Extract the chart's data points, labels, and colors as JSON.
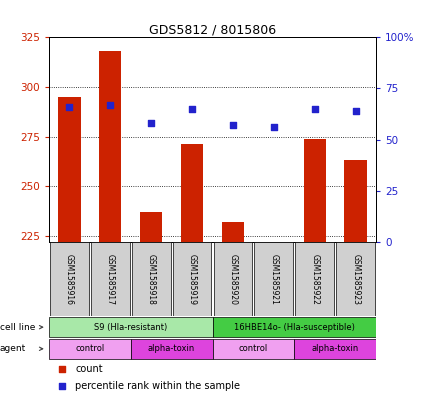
{
  "title": "GDS5812 / 8015806",
  "samples": [
    "GSM1585916",
    "GSM1585917",
    "GSM1585918",
    "GSM1585919",
    "GSM1585920",
    "GSM1585921",
    "GSM1585922",
    "GSM1585923"
  ],
  "counts": [
    295,
    318,
    237,
    271,
    232,
    222,
    274,
    263
  ],
  "percentile_ranks": [
    66,
    67,
    58,
    65,
    57,
    56,
    65,
    64
  ],
  "ylim_left": [
    222,
    325
  ],
  "ylim_right": [
    0,
    100
  ],
  "yticks_left": [
    225,
    250,
    275,
    300,
    325
  ],
  "yticks_right": [
    0,
    25,
    50,
    75,
    100
  ],
  "bar_color": "#cc2200",
  "dot_color": "#2222cc",
  "bar_bottom": 222,
  "cell_line_labels": [
    [
      "S9 (Hla-resistant)",
      0,
      4
    ],
    [
      "16HBE14o- (Hla-susceptible)",
      4,
      8
    ]
  ],
  "cell_line_colors": [
    "#a8e8a8",
    "#44cc44"
  ],
  "agent_labels": [
    [
      "control",
      0,
      2
    ],
    [
      "alpha-toxin",
      2,
      4
    ],
    [
      "control",
      4,
      6
    ],
    [
      "alpha-toxin",
      6,
      8
    ]
  ],
  "agent_colors": [
    "#f0a0f0",
    "#dd44dd",
    "#f0a0f0",
    "#dd44dd"
  ],
  "sample_bg": "#d0d0d0",
  "title_fontsize": 9
}
